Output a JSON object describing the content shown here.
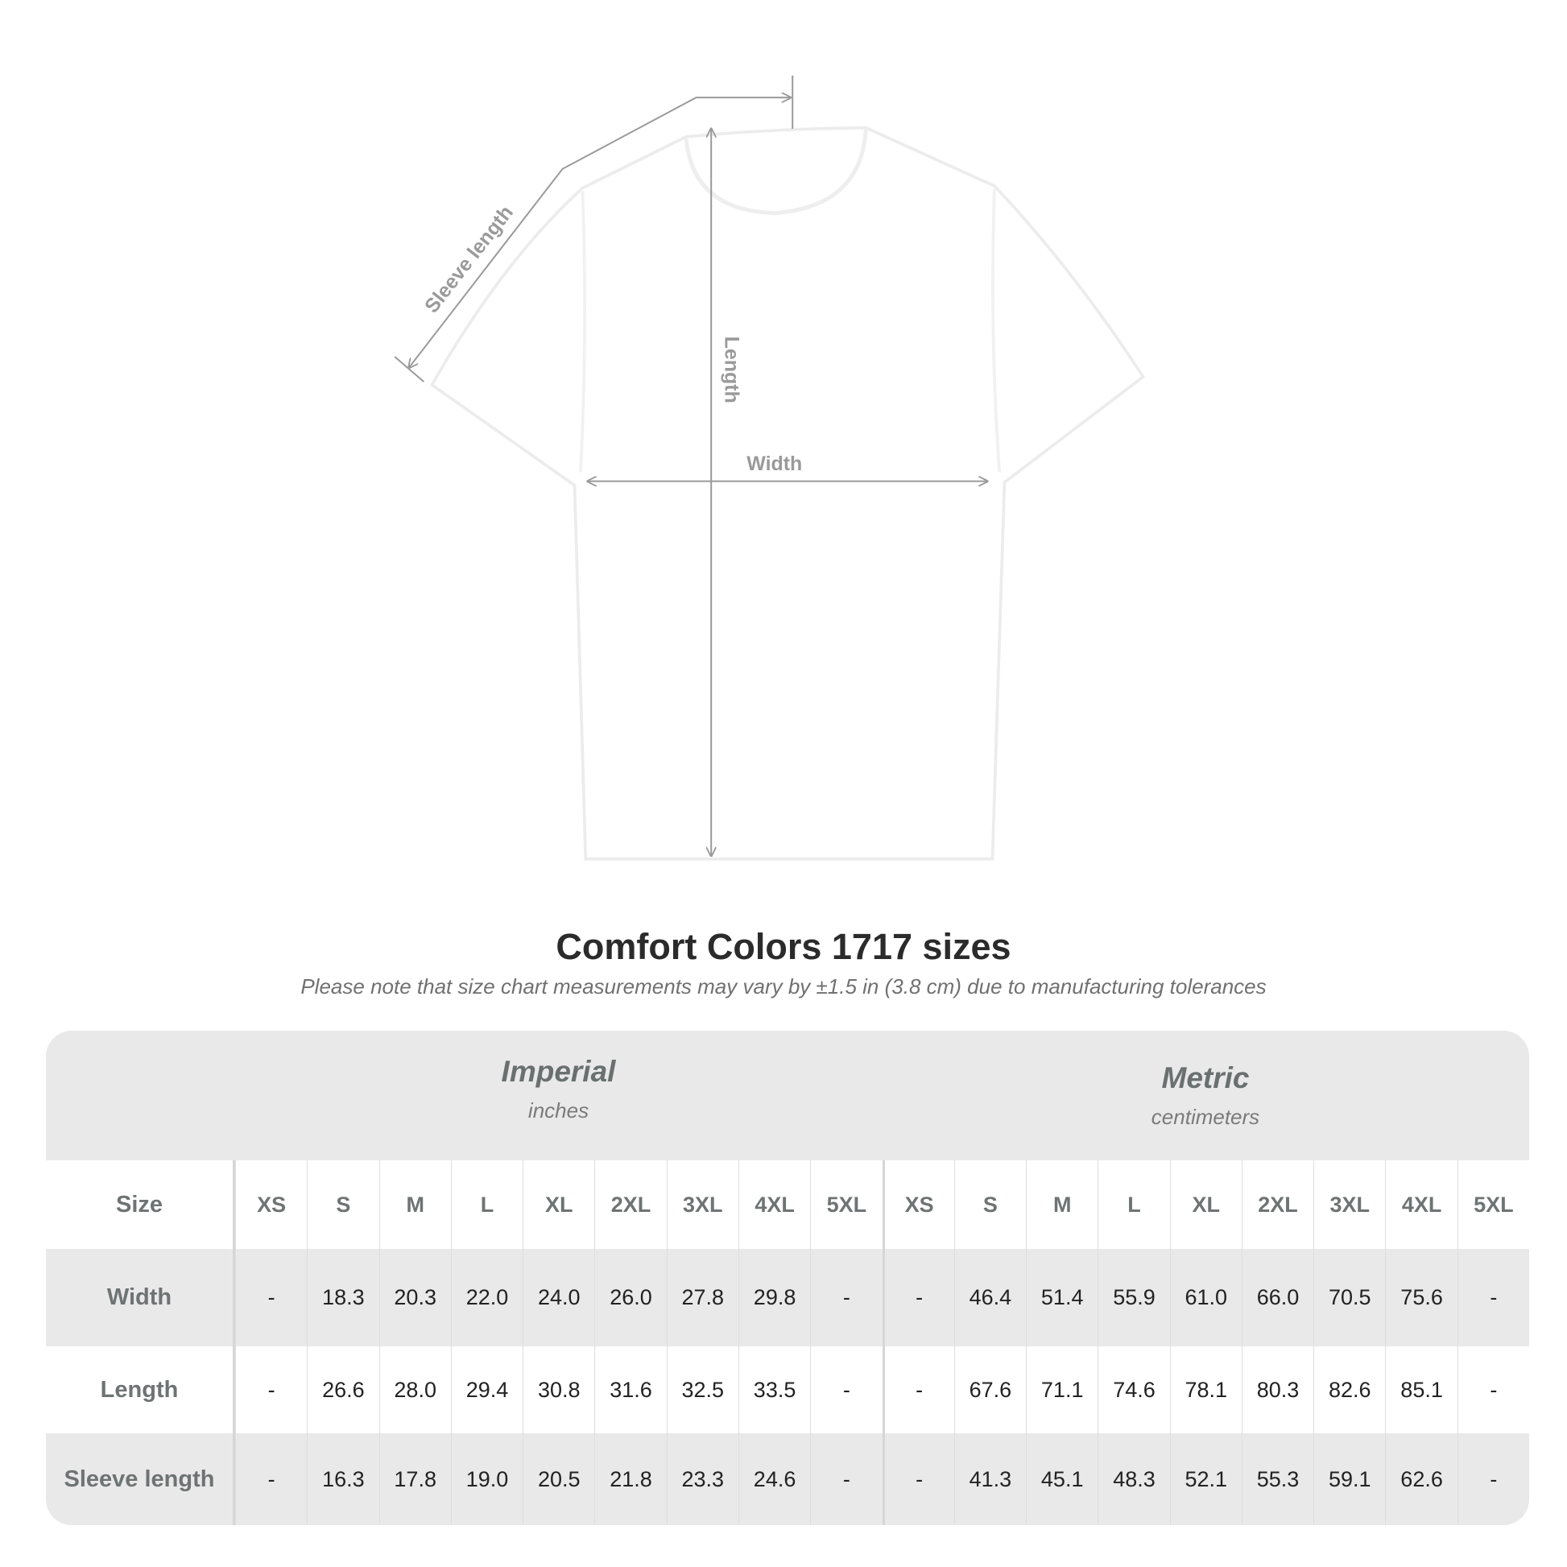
{
  "diagram": {
    "labels": {
      "sleeve": "Sleeve length",
      "length": "Length",
      "width": "Width"
    },
    "line_color": "#9a9a9a"
  },
  "title": "Comfort Colors 1717 sizes",
  "note": "Please note that size chart measurements may vary by ±1.5 in (3.8 cm) due to manufacturing tolerances",
  "table": {
    "imperial": {
      "name": "Imperial",
      "unit": "inches"
    },
    "metric": {
      "name": "Metric",
      "unit": "centimeters"
    },
    "size_label": "Size",
    "sizes": [
      "XS",
      "S",
      "M",
      "L",
      "XL",
      "2XL",
      "3XL",
      "4XL",
      "5XL"
    ],
    "rows": [
      {
        "label": "Width",
        "imperial": [
          "-",
          "18.3",
          "20.3",
          "22.0",
          "24.0",
          "26.0",
          "27.8",
          "29.8",
          "-"
        ],
        "metric": [
          "-",
          "46.4",
          "51.4",
          "55.9",
          "61.0",
          "66.0",
          "70.5",
          "75.6",
          "-"
        ]
      },
      {
        "label": "Length",
        "imperial": [
          "-",
          "26.6",
          "28.0",
          "29.4",
          "30.8",
          "31.6",
          "32.5",
          "33.5",
          "-"
        ],
        "metric": [
          "-",
          "67.6",
          "71.1",
          "74.6",
          "78.1",
          "80.3",
          "82.6",
          "85.1",
          "-"
        ]
      },
      {
        "label": "Sleeve length",
        "imperial": [
          "-",
          "16.3",
          "17.8",
          "19.0",
          "20.5",
          "21.8",
          "23.3",
          "24.6",
          "-"
        ],
        "metric": [
          "-",
          "41.3",
          "45.1",
          "48.3",
          "52.1",
          "55.3",
          "59.1",
          "62.6",
          "-"
        ]
      }
    ]
  }
}
